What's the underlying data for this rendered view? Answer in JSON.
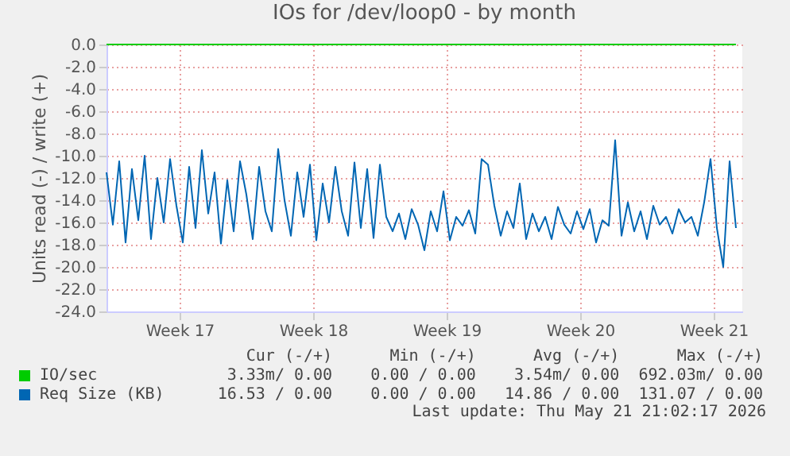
{
  "chart_data": {
    "type": "line",
    "title": "IOs for /dev/loop0 - by month",
    "ylabel": "Units read (-) / write (+)",
    "x": [
      "2026-04-19T16:00",
      "2026-04-20T00:00",
      "2026-04-20T08:00",
      "2026-04-20T16:00",
      "2026-04-21T00:00",
      "2026-04-21T08:00",
      "2026-04-21T16:00",
      "2026-04-22T00:00",
      "2026-04-22T08:00",
      "2026-04-22T16:00",
      "2026-04-23T00:00",
      "2026-04-23T08:00",
      "2026-04-23T16:00",
      "2026-04-24T00:00",
      "2026-04-24T08:00",
      "2026-04-24T16:00",
      "2026-04-25T00:00",
      "2026-04-25T08:00",
      "2026-04-25T16:00",
      "2026-04-26T00:00",
      "2026-04-26T08:00",
      "2026-04-26T16:00",
      "2026-04-27T00:00",
      "2026-04-27T08:00",
      "2026-04-27T16:00",
      "2026-04-28T00:00",
      "2026-04-28T08:00",
      "2026-04-28T16:00",
      "2026-04-29T00:00",
      "2026-04-29T08:00",
      "2026-04-29T16:00",
      "2026-04-30T00:00",
      "2026-04-30T08:00",
      "2026-04-30T16:00",
      "2026-05-01T00:00",
      "2026-05-01T08:00",
      "2026-05-01T16:00",
      "2026-05-02T00:00",
      "2026-05-02T08:00",
      "2026-05-02T16:00",
      "2026-05-03T00:00",
      "2026-05-03T08:00",
      "2026-05-03T16:00",
      "2026-05-04T00:00",
      "2026-05-04T08:00",
      "2026-05-04T16:00",
      "2026-05-05T00:00",
      "2026-05-05T08:00",
      "2026-05-05T16:00",
      "2026-05-06T00:00",
      "2026-05-06T08:00",
      "2026-05-06T16:00",
      "2026-05-07T00:00",
      "2026-05-07T08:00",
      "2026-05-07T16:00",
      "2026-05-08T00:00",
      "2026-05-08T08:00",
      "2026-05-08T16:00",
      "2026-05-09T00:00",
      "2026-05-09T08:00",
      "2026-05-09T16:00",
      "2026-05-10T00:00",
      "2026-05-10T08:00",
      "2026-05-10T16:00",
      "2026-05-11T00:00",
      "2026-05-11T08:00",
      "2026-05-11T16:00",
      "2026-05-12T00:00",
      "2026-05-12T08:00",
      "2026-05-12T16:00",
      "2026-05-13T00:00",
      "2026-05-13T08:00",
      "2026-05-13T16:00",
      "2026-05-14T00:00",
      "2026-05-14T08:00",
      "2026-05-14T16:00",
      "2026-05-15T00:00",
      "2026-05-15T08:00",
      "2026-05-15T16:00",
      "2026-05-16T00:00",
      "2026-05-16T08:00",
      "2026-05-16T16:00",
      "2026-05-17T00:00",
      "2026-05-17T08:00",
      "2026-05-17T16:00",
      "2026-05-18T00:00",
      "2026-05-18T08:00",
      "2026-05-18T16:00",
      "2026-05-19T00:00",
      "2026-05-19T08:00",
      "2026-05-19T16:00",
      "2026-05-20T00:00",
      "2026-05-20T08:00",
      "2026-05-20T16:00",
      "2026-05-21T00:00",
      "2026-05-21T08:00",
      "2026-05-21T16:00",
      "2026-05-22T00:00",
      "2026-05-22T08:00",
      "2026-05-22T16:00"
    ],
    "series": [
      {
        "name": "IO/sec",
        "color": "#00cc00",
        "x": [
          "2026-04-19T16:00",
          "2026-05-22T16:00"
        ],
        "values": [
          0,
          0
        ]
      },
      {
        "name": "Req Size (KB)",
        "color": "#0066b3",
        "values": [
          -11.5,
          -16.2,
          -10.5,
          -17.8,
          -11.2,
          -15.8,
          -10.0,
          -17.5,
          -12.0,
          -16.0,
          -10.3,
          -14.5,
          -17.8,
          -11.0,
          -16.5,
          -9.5,
          -15.2,
          -11.5,
          -17.9,
          -12.2,
          -16.8,
          -10.5,
          -13.5,
          -17.5,
          -11.0,
          -15.0,
          -16.8,
          -9.4,
          -14.0,
          -17.2,
          -11.5,
          -15.5,
          -10.8,
          -17.6,
          -12.5,
          -16.0,
          -11.0,
          -15.0,
          -17.2,
          -10.6,
          -16.5,
          -11.2,
          -17.4,
          -10.8,
          -15.5,
          -16.8,
          -15.2,
          -17.5,
          -14.8,
          -16.2,
          -18.5,
          -15.0,
          -16.8,
          -13.2,
          -17.6,
          -15.5,
          -16.3,
          -14.9,
          -17.0,
          -10.3,
          -10.8,
          -14.5,
          -17.2,
          -15.0,
          -16.5,
          -12.5,
          -17.5,
          -15.2,
          -16.8,
          -15.5,
          -17.5,
          -14.6,
          -16.2,
          -17.0,
          -15.0,
          -16.6,
          -14.8,
          -17.8,
          -15.8,
          -16.3,
          -8.6,
          -17.2,
          -14.2,
          -16.8,
          -15.0,
          -17.5,
          -14.5,
          -16.2,
          -15.5,
          -17.0,
          -14.8,
          -16.0,
          -15.5,
          -17.2,
          -14.2,
          -10.3,
          -16.5,
          -20.0,
          -10.5,
          -16.5
        ]
      }
    ],
    "xlim": [
      "2026-04-19T16:00",
      "2026-05-23T00:00"
    ],
    "xticks": [
      {
        "value": "2026-04-23T12:00",
        "label": "Week 17"
      },
      {
        "value": "2026-04-30T12:00",
        "label": "Week 18"
      },
      {
        "value": "2026-05-07T12:00",
        "label": "Week 19"
      },
      {
        "value": "2026-05-14T12:00",
        "label": "Week 20"
      },
      {
        "value": "2026-05-21T12:00",
        "label": "Week 21"
      }
    ],
    "ylim": [
      -24,
      0
    ],
    "yticks": [
      {
        "value": -24,
        "label": "-24.0"
      },
      {
        "value": -22,
        "label": "-22.0"
      },
      {
        "value": -20,
        "label": "-20.0"
      },
      {
        "value": -18,
        "label": "-18.0"
      },
      {
        "value": -16,
        "label": "-16.0"
      },
      {
        "value": -14,
        "label": "-14.0"
      },
      {
        "value": -12,
        "label": "-12.0"
      },
      {
        "value": -10,
        "label": "-10.0"
      },
      {
        "value": -8,
        "label": "-8.0"
      },
      {
        "value": -6,
        "label": "-6.0"
      },
      {
        "value": -4,
        "label": "-4.0"
      },
      {
        "value": -2,
        "label": "-2.0"
      },
      {
        "value": 0,
        "label": "0.0"
      }
    ],
    "grid": true,
    "legend": "bottom",
    "annotations": [
      "Cur (-/+)      Min (-/+)      Avg (-/+)      Max (-/+)",
      "3.33m/ 0.00    0.00 / 0.00    3.54m/ 0.00  692.03m/ 0.00",
      "16.53 / 0.00    0.00 / 0.00   14.86 / 0.00  131.07 / 0.00",
      "Last update: Thu May 21 21:02:17 2026"
    ]
  }
}
